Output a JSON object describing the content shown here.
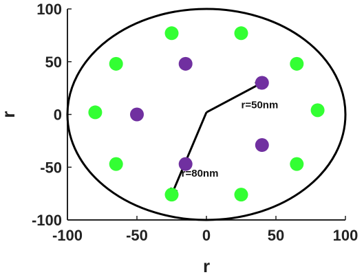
{
  "chart_data": {
    "type": "scatter",
    "xlabel": "r",
    "ylabel": "r",
    "xlim": [
      -100,
      100
    ],
    "ylim": [
      -100,
      100
    ],
    "xticks": [
      -100,
      -50,
      0,
      50,
      100
    ],
    "yticks": [
      -100,
      -50,
      0,
      50,
      100
    ],
    "xtick_labels": [
      "-100",
      "-50",
      "0",
      "50",
      "100"
    ],
    "ytick_labels": [
      "-100",
      "-50",
      "0",
      "50",
      "100"
    ],
    "grid": false,
    "boundary_ellipse": {
      "rx": 100,
      "ry": 100
    },
    "colors": {
      "green": "#33ff33",
      "purple": "#7030a0",
      "axis": "#222222",
      "ellipse": "#000000"
    },
    "series": [
      {
        "color": "#33ff33",
        "points": [
          {
            "x": -25,
            "y": 77
          },
          {
            "x": 25,
            "y": 77
          },
          {
            "x": -65,
            "y": 48
          },
          {
            "x": 65,
            "y": 48
          },
          {
            "x": -80,
            "y": 2
          },
          {
            "x": 80,
            "y": 4
          },
          {
            "x": -65,
            "y": -47
          },
          {
            "x": 65,
            "y": -47
          },
          {
            "x": -25,
            "y": -76
          },
          {
            "x": 25,
            "y": -76
          }
        ]
      },
      {
        "color": "#7030a0",
        "points": [
          {
            "x": -15,
            "y": 48
          },
          {
            "x": 40,
            "y": 30
          },
          {
            "x": -50,
            "y": 0
          },
          {
            "x": 40,
            "y": -29
          },
          {
            "x": -15,
            "y": -47
          }
        ]
      }
    ],
    "arrows": [
      {
        "from": [
          0,
          2
        ],
        "to": [
          40,
          30
        ]
      },
      {
        "from": [
          0,
          2
        ],
        "to": [
          -25,
          -76
        ]
      }
    ],
    "annotations": [
      {
        "text": "r=50nm",
        "x": 25,
        "y": 6
      },
      {
        "text": "r=80nm",
        "x": -18,
        "y": -59
      }
    ]
  }
}
